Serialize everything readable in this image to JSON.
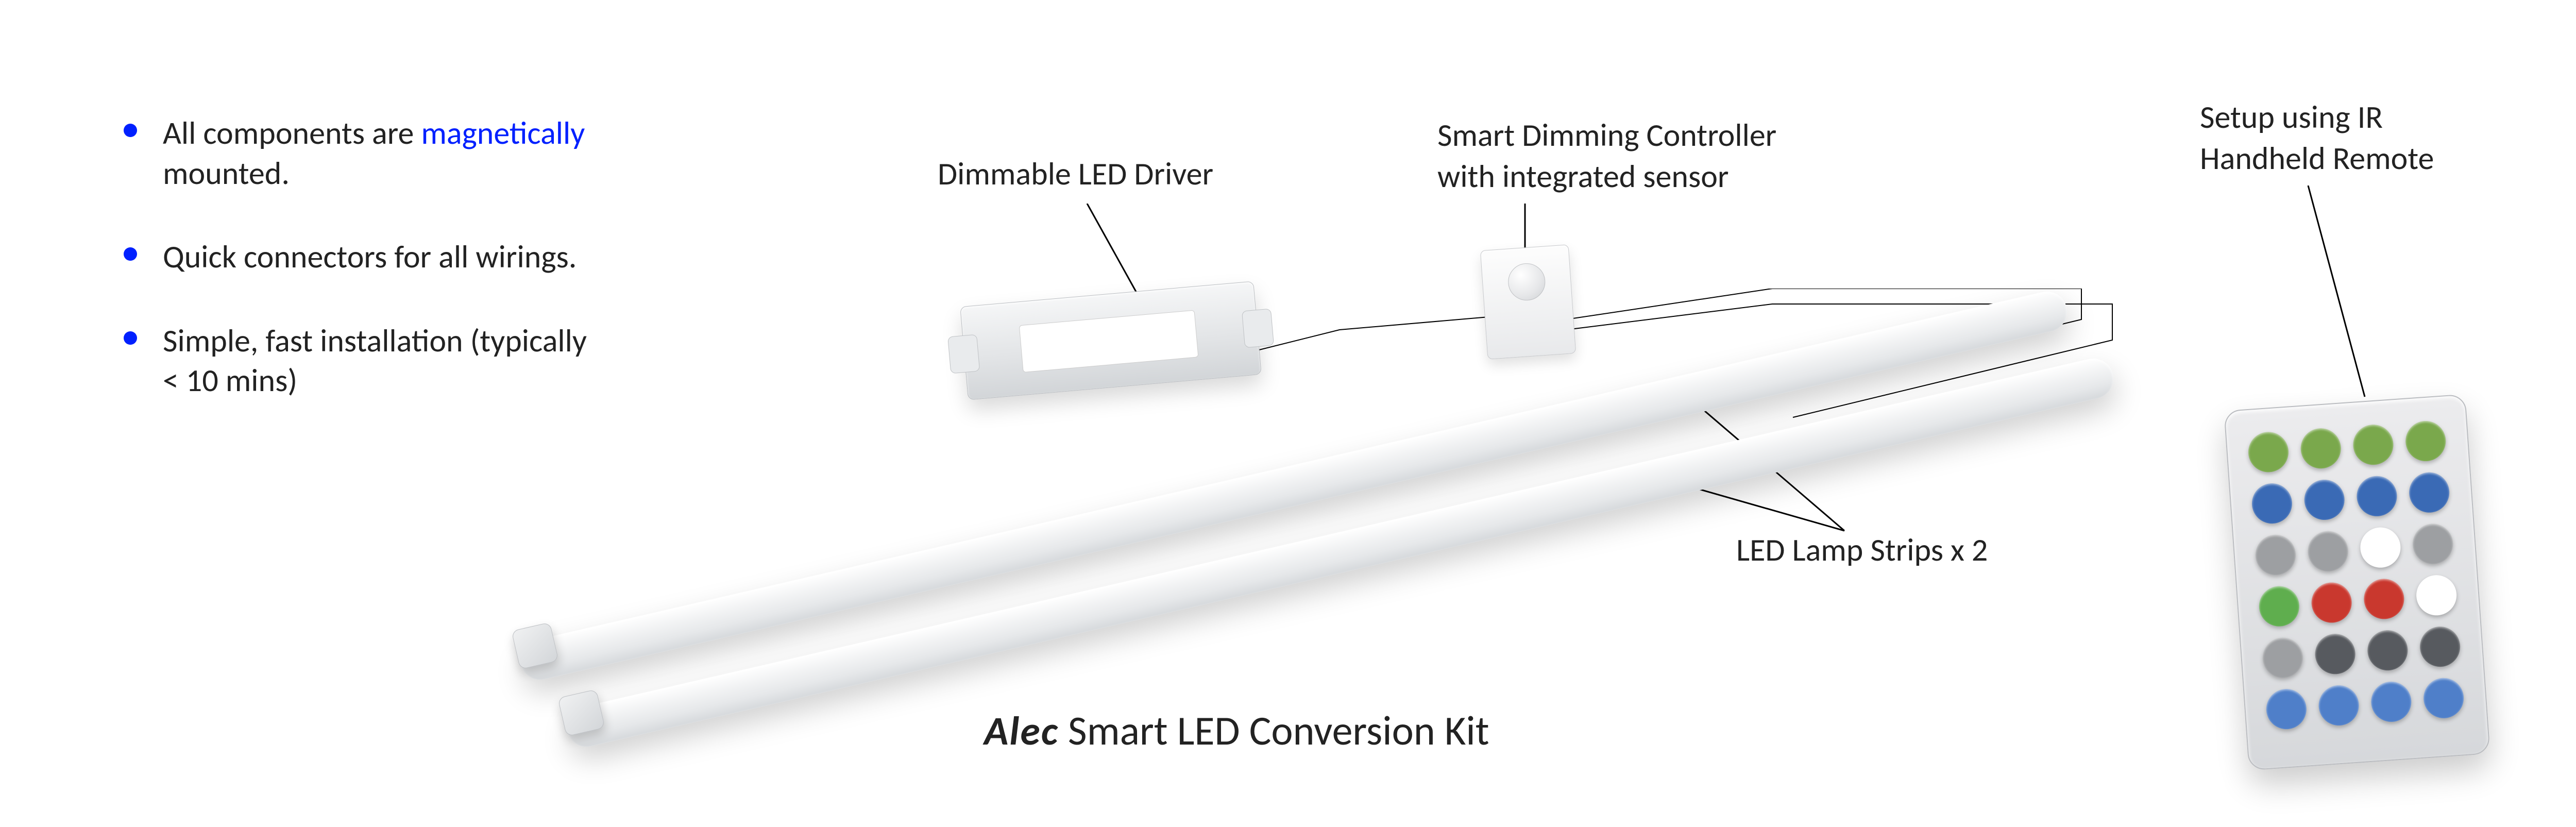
{
  "bullets": [
    {
      "pre": "All components are ",
      "emph": "magnetically",
      "post": " mounted."
    },
    {
      "pre": "Quick connectors for all wirings.",
      "emph": "",
      "post": ""
    },
    {
      "pre": "Simple, fast installation (typically < 10 mins)",
      "emph": "",
      "post": ""
    }
  ],
  "labels": {
    "driver": "Dimmable LED Driver",
    "sensor_line1": "Smart Dimming Controller",
    "sensor_line2": "with integrated sensor",
    "strips": "LED Lamp Strips x 2",
    "remote_line1": "Setup using IR",
    "remote_line2": "Handheld Remote"
  },
  "product": {
    "brand": "Alec",
    "name": " Smart LED Conversion Kit"
  },
  "colors": {
    "bullet_blue": "#0020ff",
    "text": "#222222",
    "bg": "#ffffff"
  },
  "remote_buttons": [
    "#7aa84c",
    "#7aa84c",
    "#7aa84c",
    "#7aa84c",
    "#3a6ab5",
    "#3a6ab5",
    "#3a6ab5",
    "#3a6ab5",
    "#9d9fa2",
    "#9d9fa2",
    "#ffffff",
    "#9d9fa2",
    "#5fae4e",
    "#c9382e",
    "#c9382e",
    "#ffffff",
    "#9d9fa2",
    "#575a5f",
    "#575a5f",
    "#575a5f",
    "#4f7fc9",
    "#4f7fc9",
    "#4f7fc9",
    "#4f7fc9"
  ]
}
